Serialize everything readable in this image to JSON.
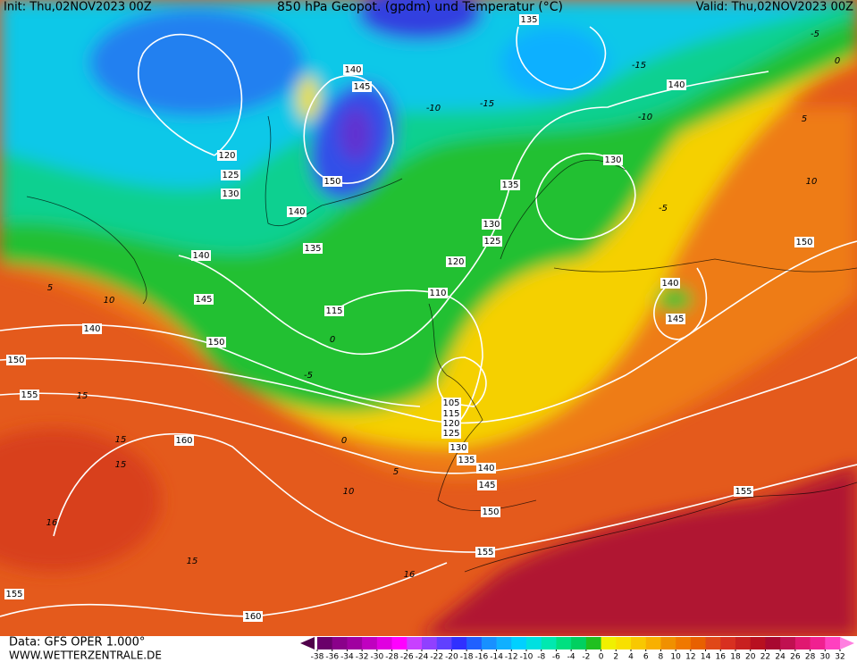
{
  "header": {
    "init": "Init: Thu,02NOV2023 00Z",
    "title": "850 hPa Geopot. (gpdm) und Temperatur (°C)",
    "valid": "Valid: Thu,02NOV2023 00Z"
  },
  "footer": {
    "data": "Data: GFS OPER 1.000°",
    "site": "WWW.WETTERZENTRALE.DE"
  },
  "colorbar": {
    "ticks": [
      -38,
      -36,
      -34,
      -32,
      -30,
      -28,
      -26,
      -24,
      -22,
      -20,
      -18,
      -16,
      -14,
      -12,
      -10,
      -8,
      -6,
      -4,
      -2,
      0,
      2,
      4,
      6,
      8,
      10,
      12,
      14,
      16,
      18,
      20,
      22,
      24,
      26,
      28,
      30,
      32
    ],
    "colors": [
      "#6a006a",
      "#8a008a",
      "#a000a0",
      "#c000c0",
      "#e000e0",
      "#ff00ff",
      "#c840ff",
      "#9040ff",
      "#6040ff",
      "#3030ff",
      "#2060ff",
      "#1890ff",
      "#10b0ff",
      "#00d0ff",
      "#00e0e0",
      "#00e8b0",
      "#00e080",
      "#00d060",
      "#20c020",
      "#f0f000",
      "#f8e000",
      "#f8c800",
      "#f8b000",
      "#f09000",
      "#f07800",
      "#e86000",
      "#e04818",
      "#d83020",
      "#c82020",
      "#b81020",
      "#a80830",
      "#c01050",
      "#e01870",
      "#f02090",
      "#ff40c0"
    ]
  },
  "geopotential_labels": [
    140,
    145,
    120,
    125,
    130,
    150,
    140,
    135,
    140,
    145,
    140,
    150,
    150,
    155,
    115,
    110,
    120,
    125,
    130,
    135,
    130,
    140,
    135,
    105,
    115,
    120,
    125,
    130,
    135,
    140,
    145,
    150,
    155,
    160,
    160,
    155,
    155,
    150,
    145,
    140
  ],
  "temperature_labels": [
    -10,
    -15,
    -15,
    -10,
    -5,
    0,
    5,
    10,
    -5,
    5,
    10,
    15,
    15,
    16,
    15,
    16,
    0,
    -5,
    0,
    5,
    10,
    15
  ]
}
